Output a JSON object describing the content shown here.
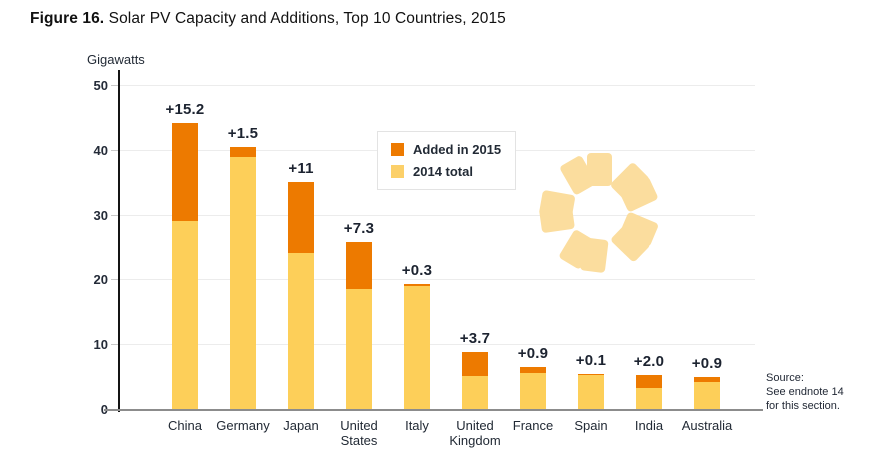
{
  "figure": {
    "title_prefix": "Figure 16.",
    "title_text": " Solar PV Capacity and Additions, Top 10 Countries, 2015"
  },
  "legend": {
    "items": [
      {
        "label": "Added in 2015",
        "color": "#ED7A00"
      },
      {
        "label": "2014 total",
        "color": "#FCD069"
      }
    ]
  },
  "source": {
    "lines": [
      "Source:",
      "See endnote 14",
      "for this section."
    ]
  },
  "decoration": {
    "icon": "sun-icon",
    "color": "#FBDD9E"
  },
  "colors": {
    "added": "#ED7A00",
    "total": "#FDCF59",
    "grid": "#ECECEC",
    "y_axis": "#141414",
    "x_axis": "#8C8C8C",
    "text": "#222A35"
  },
  "chart_data": {
    "type": "bar",
    "stacked": true,
    "title": "Figure 16. Solar PV Capacity and Additions, Top 10 Countries, 2015",
    "xlabel": "",
    "ylabel": "Gigawatts",
    "ylim": [
      0,
      50
    ],
    "y_ticks": [
      0,
      10,
      20,
      30,
      40,
      50
    ],
    "grid": true,
    "legend_position": "inside-upper-center-left",
    "categories": [
      "China",
      "Germany",
      "Japan",
      "United States",
      "Italy",
      "United Kingdom",
      "France",
      "Spain",
      "India",
      "Australia"
    ],
    "series": [
      {
        "name": "2014 total",
        "color": "#FDCF59",
        "values": [
          29.0,
          38.9,
          24.0,
          18.5,
          19.0,
          5.1,
          5.6,
          5.3,
          3.2,
          4.1
        ]
      },
      {
        "name": "Added in 2015",
        "color": "#ED7A00",
        "values": [
          15.2,
          1.5,
          11.0,
          7.3,
          0.3,
          3.7,
          0.9,
          0.1,
          2.0,
          0.9
        ]
      }
    ],
    "totals_2015": [
      44.2,
      40.4,
      35.0,
      25.8,
      19.3,
      8.8,
      6.5,
      5.4,
      5.2,
      5.0
    ],
    "bar_labels": [
      "+15.2",
      "+1.5",
      "+11",
      "+7.3",
      "+0.3",
      "+3.7",
      "+0.9",
      "+0.1",
      "+2.0",
      "+0.9"
    ]
  }
}
